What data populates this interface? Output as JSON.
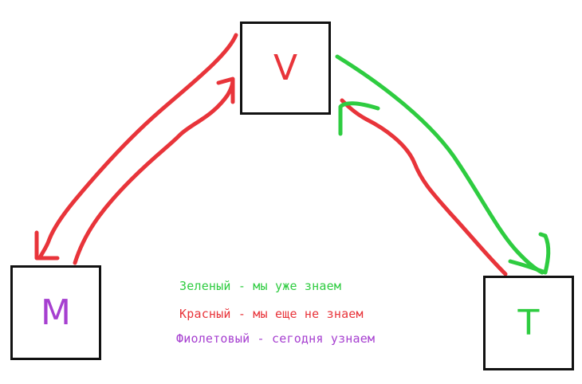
{
  "colors": {
    "green": "#2ecc40",
    "red": "#e8343a",
    "purple": "#a63fd0",
    "box_border": "#111111"
  },
  "nodes": {
    "v": {
      "label": "V",
      "color": "red"
    },
    "m": {
      "label": "M",
      "color": "purple"
    },
    "t": {
      "label": "T",
      "color": "green"
    }
  },
  "arrows": [
    {
      "from": "V",
      "to": "M",
      "color": "red"
    },
    {
      "from": "M",
      "to": "V",
      "color": "red"
    },
    {
      "from": "V",
      "to": "T",
      "color": "green"
    },
    {
      "from": "T",
      "to": "V",
      "color": "red"
    }
  ],
  "legend": {
    "green": "Зеленый - мы уже знаем",
    "red": "Красный - мы еще не знаем",
    "purple": "Фиолетовый - сегодня узнаем"
  }
}
